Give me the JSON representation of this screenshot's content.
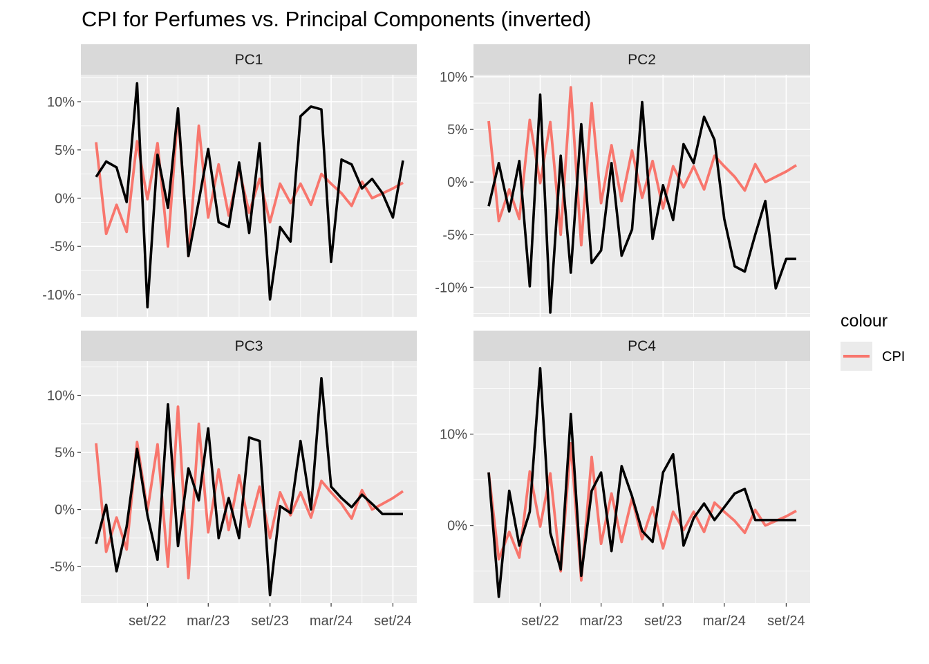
{
  "title": "CPI for Perfumes vs. Principal Components (inverted)",
  "legend": {
    "title": "colour",
    "entries": [
      {
        "label": "CPI",
        "color": "#F8766D"
      }
    ]
  },
  "colors": {
    "cpi": "#F8766D",
    "pc": "#000000",
    "panel_bg": "#EBEBEB",
    "strip_bg": "#D9D9D9",
    "grid": "#FFFFFF"
  },
  "x_axis": {
    "ticks": [
      "2022-09-01",
      "2023-03-01",
      "2023-09-01",
      "2024-03-01",
      "2024-09-01"
    ],
    "tick_labels": [
      "set/22",
      "mar/23",
      "set/23",
      "mar/24",
      "set/24"
    ]
  },
  "chart_data": {
    "type": "line",
    "x": [
      "2022-04-01",
      "2022-05-01",
      "2022-06-01",
      "2022-07-01",
      "2022-08-01",
      "2022-09-01",
      "2022-10-01",
      "2022-11-01",
      "2022-12-01",
      "2023-01-01",
      "2023-02-01",
      "2023-03-01",
      "2023-04-01",
      "2023-05-01",
      "2023-06-01",
      "2023-07-01",
      "2023-08-01",
      "2023-09-01",
      "2023-10-01",
      "2023-11-01",
      "2023-12-01",
      "2024-01-01",
      "2024-02-01",
      "2024-03-01",
      "2024-04-01",
      "2024-05-01",
      "2024-06-01",
      "2024-07-01",
      "2024-08-01",
      "2024-09-01",
      "2024-10-01"
    ],
    "cpi": [
      5.8,
      -3.7,
      -0.7,
      -3.5,
      5.9,
      -0.1,
      5.7,
      -5.0,
      9.0,
      -6.0,
      7.5,
      -2.0,
      3.5,
      -1.8,
      3.0,
      -1.5,
      2.0,
      -2.5,
      1.5,
      -0.5,
      1.5,
      -0.7,
      2.5,
      1.5,
      0.5,
      -0.8,
      1.7,
      0.0,
      0.5,
      1.0,
      1.6
    ],
    "panels": [
      {
        "label": "PC1",
        "y_ticks": [
          -10,
          -5,
          0,
          5,
          10
        ],
        "y_tick_labels": [
          "-10%",
          "-5%",
          "0%",
          "5%",
          "10%"
        ],
        "ylim": [
          -12.3,
          12.8
        ],
        "series": {
          "values": [
            2.2,
            3.8,
            3.2,
            -0.4,
            11.9,
            -11.3,
            4.5,
            -1.0,
            9.3,
            -6.0,
            -0.3,
            5.1,
            -2.5,
            -3.0,
            3.7,
            -3.6,
            5.7,
            -10.5,
            -3.0,
            -4.5,
            8.5,
            9.5,
            9.2,
            -6.6,
            4.0,
            3.5,
            1.0,
            2.0,
            0.5,
            -2.0,
            3.9
          ]
        }
      },
      {
        "label": "PC2",
        "y_ticks": [
          -10,
          -5,
          0,
          5,
          10
        ],
        "y_tick_labels": [
          "-10%",
          "-5%",
          "0%",
          "5%",
          "10%"
        ],
        "ylim": [
          -12.8,
          10.2
        ],
        "series": {
          "values": [
            -2.3,
            1.8,
            -2.8,
            2.0,
            -9.9,
            8.3,
            -12.4,
            2.5,
            -8.6,
            5.5,
            -7.7,
            -6.5,
            1.8,
            -7.0,
            -4.5,
            7.6,
            -5.4,
            -0.3,
            -3.6,
            3.6,
            1.8,
            6.2,
            4.0,
            -3.5,
            -8.0,
            -8.5,
            -5.0,
            -1.8,
            -10.1,
            -7.3,
            -7.3
          ]
        }
      },
      {
        "label": "PC3",
        "y_ticks": [
          -5,
          0,
          5,
          10
        ],
        "y_tick_labels": [
          "-5%",
          "0%",
          "5%",
          "10%"
        ],
        "ylim": [
          -8.2,
          13.0
        ],
        "series": {
          "values": [
            -3.0,
            0.4,
            -5.4,
            -1.5,
            5.3,
            -0.5,
            -4.4,
            9.2,
            -3.2,
            3.6,
            0.8,
            7.1,
            -2.5,
            1.0,
            -2.5,
            6.3,
            6.0,
            -7.5,
            0.3,
            -0.3,
            6.0,
            0.0,
            11.5,
            2.0,
            1.0,
            0.2,
            1.3,
            0.5,
            -0.4,
            -0.4,
            -0.4
          ]
        }
      },
      {
        "label": "PC4",
        "y_ticks": [
          0,
          10
        ],
        "y_tick_labels": [
          "0%",
          "10%"
        ],
        "ylim": [
          -8.5,
          18.0
        ],
        "series": {
          "values": [
            5.8,
            -7.8,
            3.8,
            -2.2,
            1.5,
            17.2,
            -0.8,
            -4.8,
            12.2,
            -5.5,
            3.8,
            5.8,
            -2.8,
            6.5,
            3.2,
            -0.6,
            -1.8,
            5.8,
            7.8,
            -2.2,
            0.8,
            2.4,
            0.6,
            2.0,
            3.5,
            4.0,
            0.6,
            0.6,
            0.6,
            0.6,
            0.6
          ]
        }
      }
    ]
  }
}
